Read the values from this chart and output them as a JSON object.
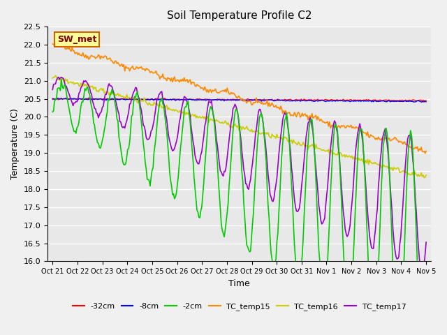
{
  "title": "Soil Temperature Profile C2",
  "xlabel": "Time",
  "ylabel": "Temperature (C)",
  "ylim": [
    16.0,
    22.5
  ],
  "yticks": [
    16.0,
    16.5,
    17.0,
    17.5,
    18.0,
    18.5,
    19.0,
    19.5,
    20.0,
    20.5,
    21.0,
    21.5,
    22.0,
    22.5
  ],
  "bg_color": "#e8e8e8",
  "grid_color": "#ffffff",
  "annotation_text": "SW_met",
  "annotation_bg": "#ffff99",
  "annotation_border": "#cc6600",
  "annotation_text_color": "#800000",
  "legend_entries": [
    "-32cm",
    "-8cm",
    "-2cm",
    "TC_temp15",
    "TC_temp16",
    "TC_temp17"
  ],
  "legend_colors": [
    "#ff0000",
    "#0000ff",
    "#00cc00",
    "#ff8800",
    "#cccc00",
    "#9900cc"
  ],
  "line_colors": {
    "TC_temp15": "#ff8800",
    "TC_temp16": "#cccc00",
    "TC_temp17": "#9900cc",
    "neg2cm": "#00cc00",
    "neg8cm": "#0000ff",
    "neg32cm": "#ff0000"
  },
  "x_tick_positions": [
    0,
    1,
    2,
    3,
    4,
    5,
    6,
    7,
    8,
    9,
    10,
    11,
    12,
    13,
    14,
    15
  ],
  "x_tick_labels": [
    "Oct 21",
    "Oct 22",
    "Oct 23",
    "Oct 24",
    "Oct 25",
    "Oct 26",
    "Oct 27",
    "Oct 28",
    "Oct 29",
    "Oct 30",
    "Oct 31",
    "Nov 1",
    "Nov 2",
    "Nov 3",
    "Nov 4",
    "Nov 5"
  ]
}
